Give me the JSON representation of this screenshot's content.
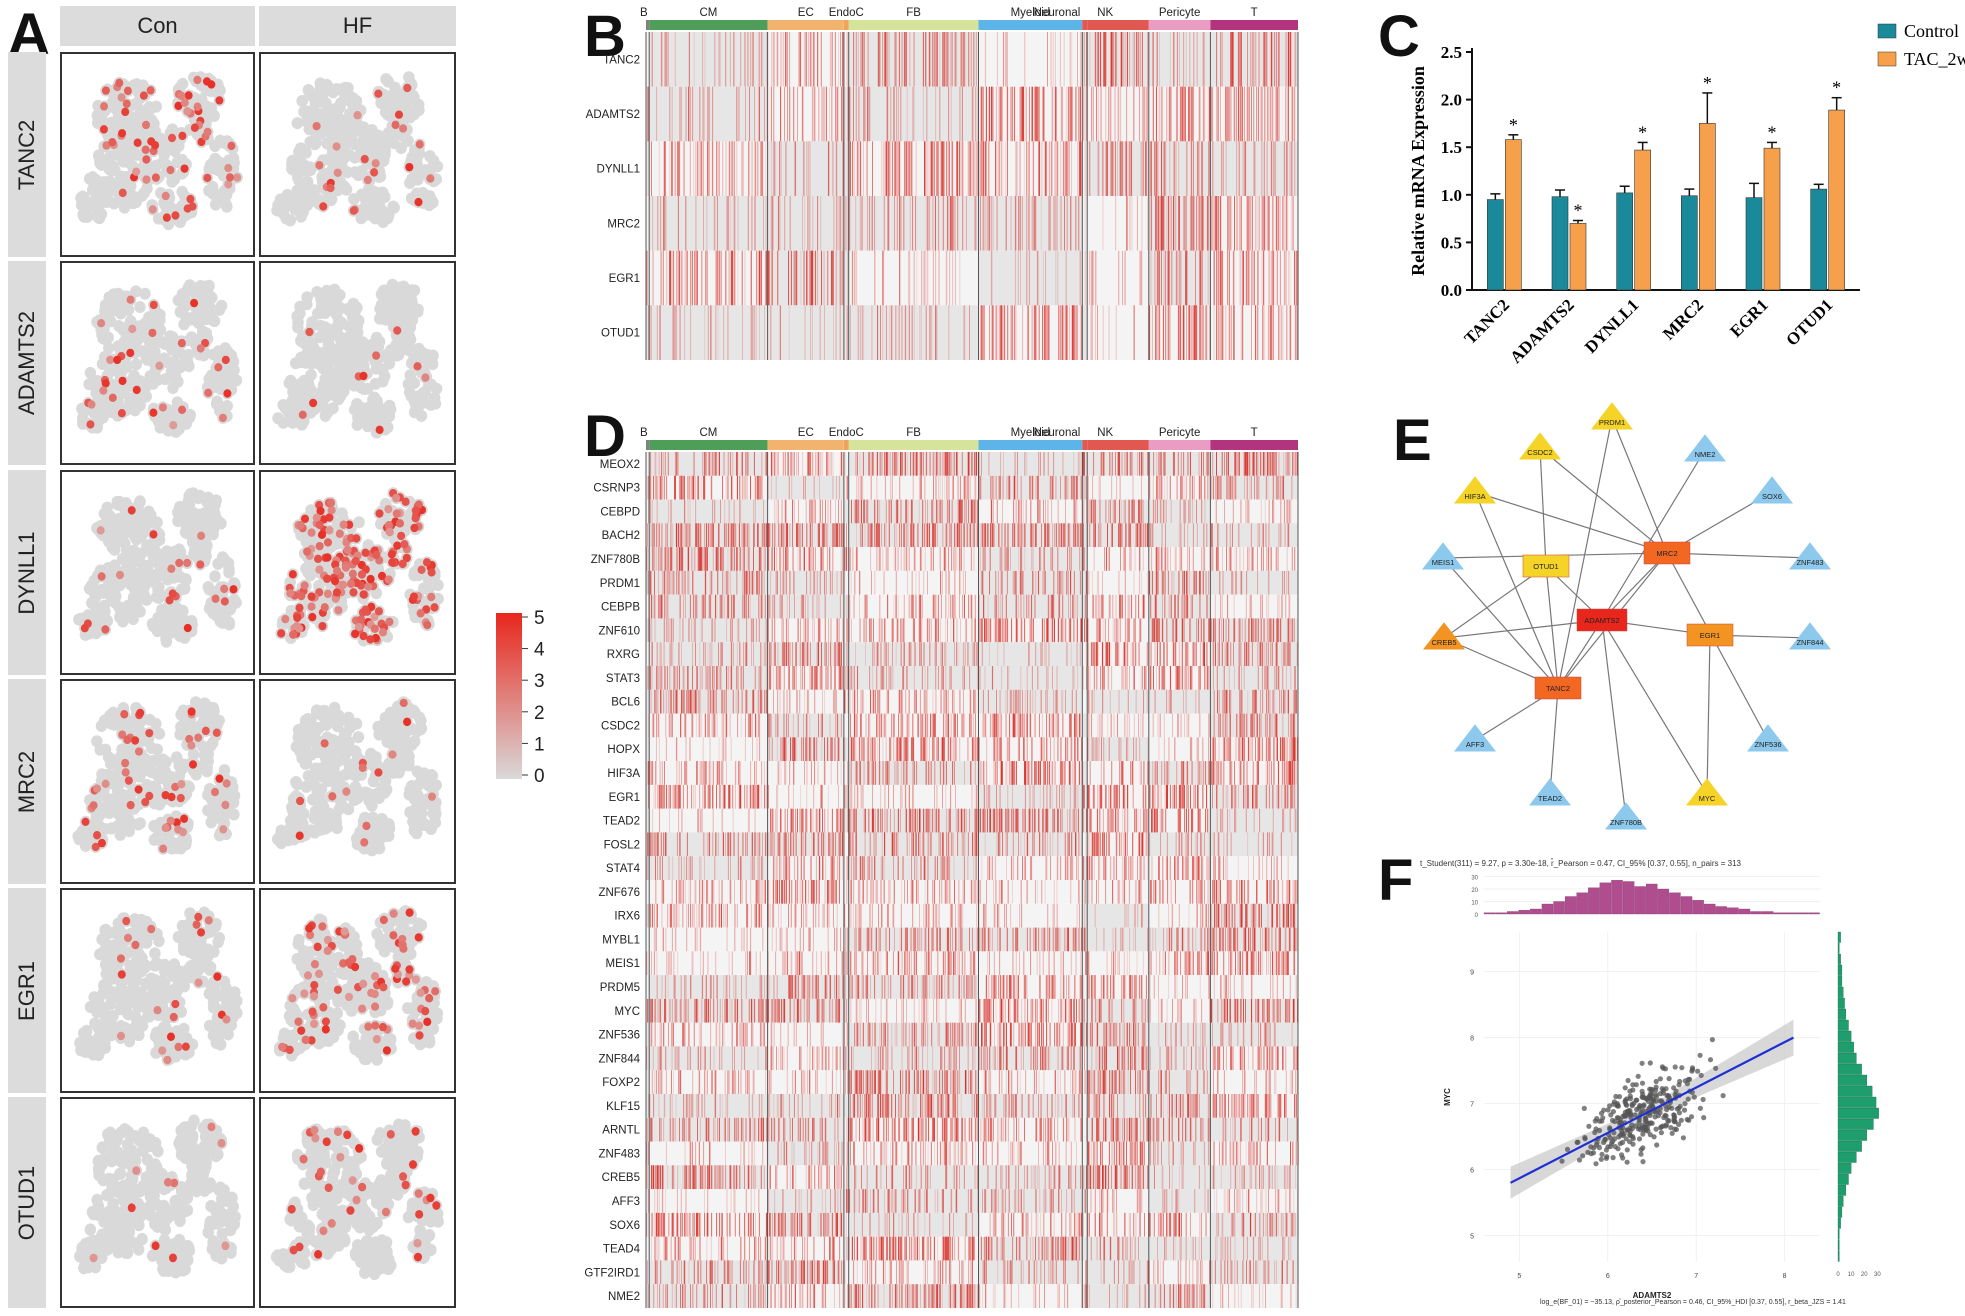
{
  "panels": {
    "A": "A",
    "B": "B",
    "C": "C",
    "D": "D",
    "E": "E",
    "F": "F"
  },
  "tsne": {
    "conditions": [
      "Con",
      "HF"
    ],
    "genes": [
      "TANC2",
      "ADAMTS2",
      "DYNLL1",
      "MRC2",
      "EGR1",
      "OTUD1"
    ],
    "density": {
      "TANC2": [
        0.16,
        0.05
      ],
      "ADAMTS2": [
        0.09,
        0.03
      ],
      "DYNLL1": [
        0.05,
        0.42
      ],
      "MRC2": [
        0.11,
        0.04
      ],
      "EGR1": [
        0.05,
        0.19
      ],
      "OTUD1": [
        0.04,
        0.07
      ]
    },
    "colorbar": {
      "ticks": [
        "5",
        "4",
        "3",
        "2",
        "1",
        "0"
      ],
      "low_color": "#d9d9d9",
      "high_color": "#e8261c"
    }
  },
  "celltypes": [
    {
      "name": "B",
      "color": "#808080",
      "w": 0.4
    },
    {
      "name": "CM",
      "color": "#4e9e5a",
      "w": 14.6
    },
    {
      "name": "EC",
      "color": "#f2b36e",
      "w": 9.4
    },
    {
      "name": "EndoC",
      "color": "#f0a35a",
      "w": 0.6
    },
    {
      "name": "FB",
      "color": "#d6e39a",
      "w": 16.0
    },
    {
      "name": "Myeloid",
      "color": "#5db4e8",
      "w": 12.8
    },
    {
      "name": "Neuronal",
      "color": "#e0584f",
      "w": 0.6
    },
    {
      "name": "NK",
      "color": "#e0584f",
      "w": 7.6
    },
    {
      "name": "Pericyte",
      "color": "#ea9cc2",
      "w": 7.6
    },
    {
      "name": "T",
      "color": "#b2347e",
      "w": 10.8
    }
  ],
  "heatmap_B_genes": [
    "TANC2",
    "ADAMTS2",
    "DYNLL1",
    "MRC2",
    "EGR1",
    "OTUD1"
  ],
  "heatmap_D_genes": [
    "MEOX2",
    "CSRNP3",
    "CEBPD",
    "BACH2",
    "ZNF780B",
    "PRDM1",
    "CEBPB",
    "ZNF610",
    "RXRG",
    "STAT3",
    "BCL6",
    "CSDC2",
    "HOPX",
    "HIF3A",
    "EGR1",
    "TEAD2",
    "FOSL2",
    "STAT4",
    "ZNF676",
    "IRX6",
    "MYBL1",
    "MEIS1",
    "PRDM5",
    "MYC",
    "ZNF536",
    "ZNF844",
    "FOXP2",
    "KLF15",
    "ARNTL",
    "ZNF483",
    "CREB5",
    "AFF3",
    "SOX6",
    "TEAD4",
    "GTF2IRD1",
    "NME2"
  ],
  "chart_data": [
    {
      "type": "bar",
      "panel": "C",
      "categories": [
        "TANC2",
        "ADAMTS2",
        "DYNLL1",
        "MRC2",
        "EGR1",
        "OTUD1"
      ],
      "series": [
        {
          "name": "Control",
          "color": "#1a8a9a",
          "values": [
            0.95,
            0.98,
            1.02,
            0.99,
            0.97,
            1.06
          ],
          "errors": [
            0.06,
            0.07,
            0.07,
            0.07,
            0.15,
            0.05
          ]
        },
        {
          "name": "TAC_2w",
          "color": "#f7a04b",
          "values": [
            1.58,
            0.7,
            1.47,
            1.75,
            1.49,
            1.89
          ],
          "errors": [
            0.05,
            0.03,
            0.08,
            0.32,
            0.06,
            0.13
          ]
        }
      ],
      "significance": [
        "*",
        "*",
        "*",
        "*",
        "*",
        "*"
      ],
      "ylabel": "Relative mRNA Expression",
      "ylim": [
        0,
        2.5
      ],
      "yticks": [
        "0.0",
        "0.5",
        "1.0",
        "1.5",
        "2.0",
        "2.5"
      ],
      "legend": "top-right"
    },
    {
      "type": "scatter",
      "panel": "F",
      "xlabel": "ADAMTS2",
      "ylabel": "MYC",
      "xlim": [
        4.6,
        8.4
      ],
      "ylim": [
        4.6,
        9.6
      ],
      "xticks": [
        "5",
        "6",
        "7",
        "8"
      ],
      "yticks": [
        "5",
        "6",
        "7",
        "8",
        "9"
      ],
      "fit_line": {
        "x": [
          4.9,
          8.1
        ],
        "y": [
          5.8,
          8.0
        ]
      },
      "n_points": 313,
      "stats_header": "t_Student(311) = 9.27, p = 3.30e-18, r̂_Pearson = 0.47, CI_95% [0.37, 0.55], n_pairs = 313",
      "stats_footer": "log_e(BF_01) = −35.13, ρ̂_posterior_Pearson = 0.46, CI_95%_HDI [0.37, 0.55], r_beta_JZS = 1.41",
      "top_hist": {
        "ticks": [
          "0",
          "10",
          "20",
          "30"
        ],
        "color": "#b04d8f"
      },
      "right_hist": {
        "ticks": [
          "0",
          "10",
          "20",
          "30"
        ],
        "color": "#1f9e6d"
      }
    }
  ],
  "network": {
    "nodes": [
      {
        "id": "PRDM1",
        "shape": "triangle",
        "color": "#f5d327"
      },
      {
        "id": "CSDC2",
        "shape": "triangle",
        "color": "#f5d327"
      },
      {
        "id": "NME2",
        "shape": "triangle",
        "color": "#8cc9ec"
      },
      {
        "id": "HIF3A",
        "shape": "triangle",
        "color": "#f5d327"
      },
      {
        "id": "SOX6",
        "shape": "triangle",
        "color": "#8cc9ec"
      },
      {
        "id": "MRC2",
        "shape": "rect",
        "color": "#f26722"
      },
      {
        "id": "MEIS1",
        "shape": "triangle",
        "color": "#8cc9ec"
      },
      {
        "id": "OTUD1",
        "shape": "rect",
        "color": "#f5d327"
      },
      {
        "id": "ZNF483",
        "shape": "triangle",
        "color": "#8cc9ec"
      },
      {
        "id": "ADAMTS2",
        "shape": "rect",
        "color": "#e8261c"
      },
      {
        "id": "CREB5",
        "shape": "triangle",
        "color": "#f39422"
      },
      {
        "id": "EGR1",
        "shape": "rect",
        "color": "#f39422"
      },
      {
        "id": "ZNF844",
        "shape": "triangle",
        "color": "#8cc9ec"
      },
      {
        "id": "TANC2",
        "shape": "rect",
        "color": "#f26722"
      },
      {
        "id": "AFF3",
        "shape": "triangle",
        "color": "#8cc9ec"
      },
      {
        "id": "ZNF536",
        "shape": "triangle",
        "color": "#8cc9ec"
      },
      {
        "id": "TEAD2",
        "shape": "triangle",
        "color": "#8cc9ec"
      },
      {
        "id": "MYC",
        "shape": "triangle",
        "color": "#f5d327"
      },
      {
        "id": "ZNF780B",
        "shape": "triangle",
        "color": "#8cc9ec"
      }
    ],
    "edges": [
      [
        "PRDM1",
        "MRC2"
      ],
      [
        "PRDM1",
        "TANC2"
      ],
      [
        "CSDC2",
        "OTUD1"
      ],
      [
        "CSDC2",
        "MRC2"
      ],
      [
        "NME2",
        "ADAMTS2"
      ],
      [
        "HIF3A",
        "MRC2"
      ],
      [
        "HIF3A",
        "TANC2"
      ],
      [
        "SOX6",
        "MRC2"
      ],
      [
        "MEIS1",
        "MRC2"
      ],
      [
        "MEIS1",
        "TANC2"
      ],
      [
        "OTUD1",
        "ADAMTS2"
      ],
      [
        "OTUD1",
        "TANC2"
      ],
      [
        "MRC2",
        "ADAMTS2"
      ],
      [
        "MRC2",
        "TANC2"
      ],
      [
        "MRC2",
        "ZNF483"
      ],
      [
        "MRC2",
        "ZNF536"
      ],
      [
        "CREB5",
        "ADAMTS2"
      ],
      [
        "CREB5",
        "OTUD1"
      ],
      [
        "CREB5",
        "TANC2"
      ],
      [
        "ADAMTS2",
        "TANC2"
      ],
      [
        "ADAMTS2",
        "EGR1"
      ],
      [
        "ADAMTS2",
        "ZNF780B"
      ],
      [
        "ADAMTS2",
        "MYC"
      ],
      [
        "EGR1",
        "ZNF844"
      ],
      [
        "EGR1",
        "MYC"
      ],
      [
        "TANC2",
        "AFF3"
      ],
      [
        "TANC2",
        "TEAD2"
      ]
    ]
  }
}
